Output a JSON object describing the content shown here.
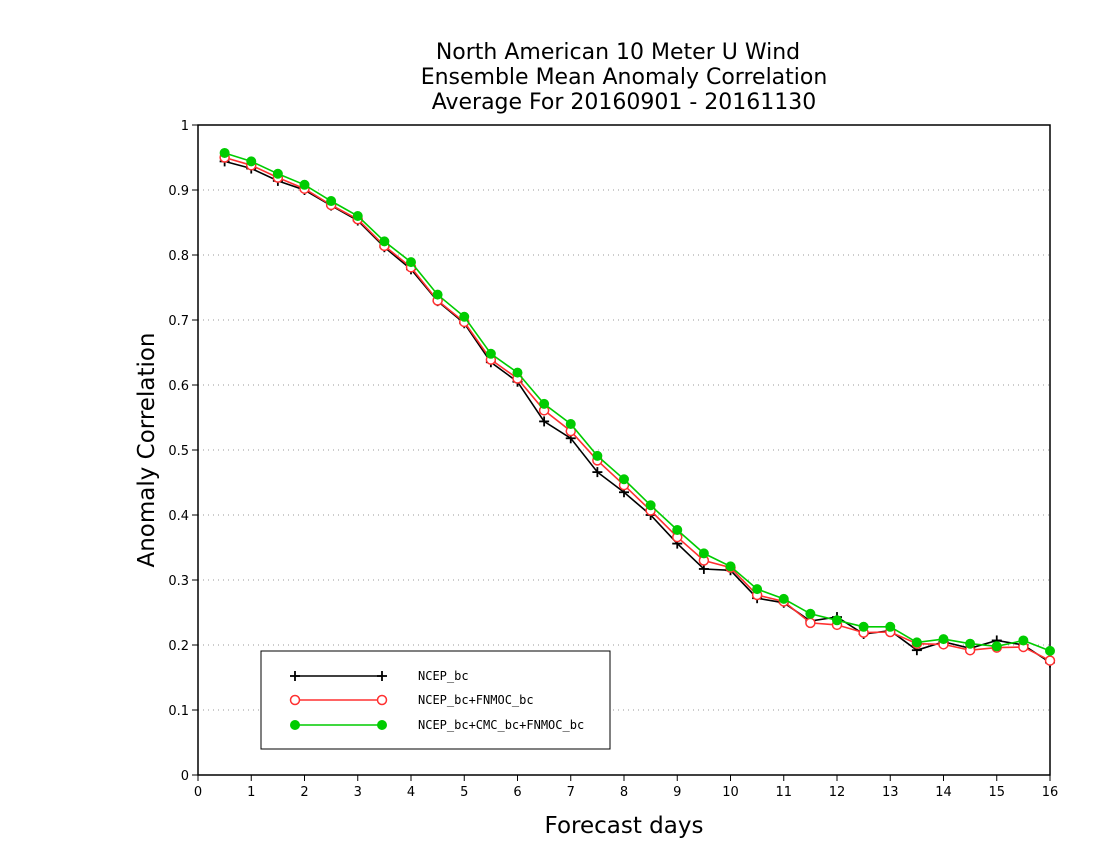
{
  "chart_data": {
    "type": "line",
    "title": [
      "North American 10 Meter U Wind",
      "Ensemble Mean Anomaly Correlation",
      "Average For 20160901 - 20161130"
    ],
    "xlabel": "Forecast days",
    "ylabel": "Anomaly Correlation",
    "xlim": [
      0,
      16
    ],
    "ylim": [
      0,
      1
    ],
    "xticks": [
      "0",
      "1",
      "2",
      "3",
      "4",
      "5",
      "6",
      "7",
      "8",
      "9",
      "10",
      "11",
      "12",
      "13",
      "14",
      "15",
      "16"
    ],
    "yticks": [
      "0",
      "0.1",
      "0.2",
      "0.3",
      "0.4",
      "0.5",
      "0.6",
      "0.7",
      "0.8",
      "0.9",
      "1"
    ],
    "grid": "horizontal dotted",
    "legend_position": "lower-left",
    "x": [
      0.5,
      1,
      1.5,
      2,
      2.5,
      3,
      3.5,
      4,
      4.5,
      5,
      5.5,
      6,
      6.5,
      7,
      7.5,
      8,
      8.5,
      9,
      9.5,
      10,
      10.5,
      11,
      11.5,
      12,
      12.5,
      13,
      13.5,
      14,
      14.5,
      15,
      15.5,
      16
    ],
    "series": [
      {
        "name": "NCEP_bc",
        "color": "#000000",
        "marker": "plus",
        "values": [
          0.944,
          0.933,
          0.914,
          0.9,
          0.876,
          0.853,
          0.812,
          0.778,
          0.729,
          0.695,
          0.635,
          0.605,
          0.544,
          0.518,
          0.466,
          0.435,
          0.4,
          0.356,
          0.317,
          0.315,
          0.272,
          0.265,
          0.237,
          0.243,
          0.217,
          0.222,
          0.192,
          0.205,
          0.195,
          0.207,
          0.2,
          0.173
        ]
      },
      {
        "name": "NCEP_bc+FNMOC_bc",
        "color": "#ff3030",
        "marker": "open-circle",
        "values": [
          0.95,
          0.938,
          0.919,
          0.902,
          0.877,
          0.855,
          0.814,
          0.781,
          0.73,
          0.697,
          0.639,
          0.61,
          0.561,
          0.529,
          0.484,
          0.446,
          0.407,
          0.366,
          0.33,
          0.319,
          0.277,
          0.267,
          0.234,
          0.231,
          0.219,
          0.22,
          0.202,
          0.201,
          0.192,
          0.196,
          0.197,
          0.176
        ]
      },
      {
        "name": "NCEP_bc+CMC_bc+FNMOC_bc",
        "color": "#00cc00",
        "marker": "filled-circle",
        "values": [
          0.957,
          0.944,
          0.925,
          0.908,
          0.883,
          0.86,
          0.821,
          0.789,
          0.739,
          0.705,
          0.648,
          0.619,
          0.571,
          0.54,
          0.491,
          0.455,
          0.415,
          0.377,
          0.341,
          0.321,
          0.286,
          0.271,
          0.248,
          0.238,
          0.228,
          0.228,
          0.204,
          0.209,
          0.202,
          0.198,
          0.207,
          0.191
        ]
      }
    ]
  }
}
